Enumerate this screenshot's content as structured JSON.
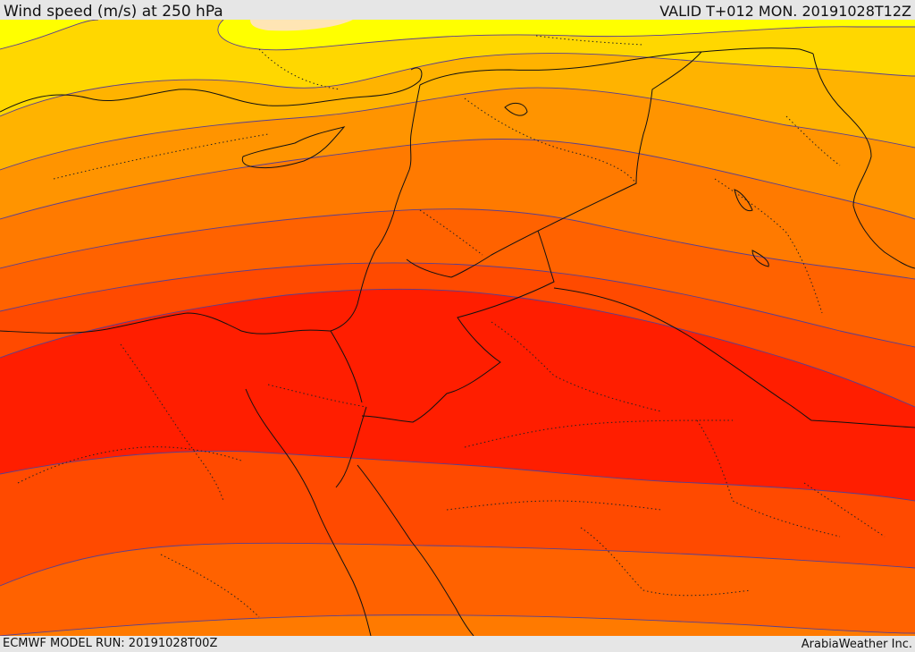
{
  "header": {
    "title": "Wind speed (m/s) at 250 hPa",
    "valid": "VALID T+012 MON. 20191028T12Z"
  },
  "footer": {
    "model_run": "ECMWF MODEL RUN: 20191028T00Z",
    "credit": "ArabiaWeather Inc."
  },
  "map": {
    "fill_colors": [
      "#ffe5b4",
      "#ffff00",
      "#ffd700",
      "#ffb300",
      "#ff9400",
      "#ff7a00",
      "#ff6200",
      "#ff4a00",
      "#ff3200",
      "#ff1e00"
    ],
    "contour_color": "#5a3f8f",
    "border_color": "#111111"
  }
}
